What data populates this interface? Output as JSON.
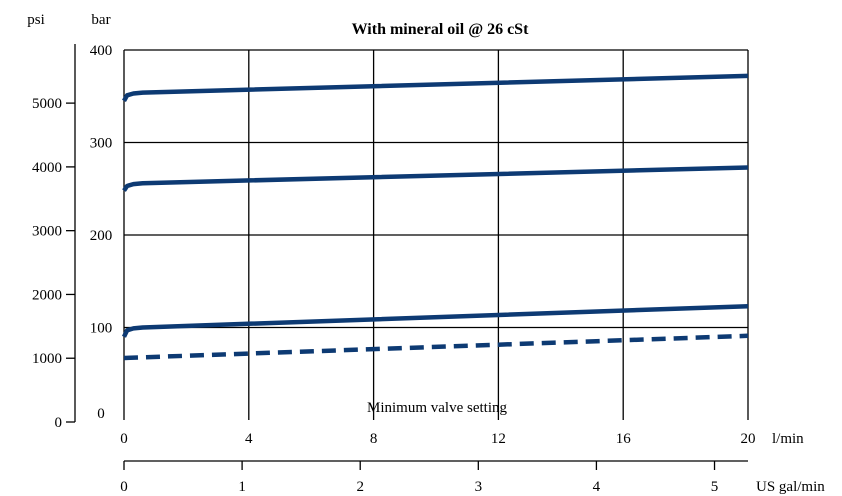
{
  "chart_data": {
    "type": "line",
    "title": "With mineral oil @ 26 cSt",
    "x": {
      "label": "l/min",
      "range": [
        0,
        20
      ],
      "ticks": [
        0,
        4,
        8,
        12,
        16,
        20
      ]
    },
    "x_secondary": {
      "label": "US gal/min",
      "ticks": [
        0,
        1,
        2,
        3,
        4,
        5
      ]
    },
    "y": {
      "label": "bar",
      "range": [
        0,
        400
      ],
      "ticks": [
        0,
        100,
        200,
        300,
        400
      ]
    },
    "y_secondary": {
      "label": "psi",
      "ticks": [
        0,
        1000,
        2000,
        3000,
        4000,
        5000
      ]
    },
    "grid": true,
    "annotation": "Minimum valve setting",
    "series": [
      {
        "style": "solid",
        "color": "#0d3a73",
        "points": [
          [
            0,
            345
          ],
          [
            0.1,
            351
          ],
          [
            0.3,
            353
          ],
          [
            0.6,
            354
          ],
          [
            20,
            372
          ]
        ]
      },
      {
        "style": "solid",
        "color": "#0d3a73",
        "points": [
          [
            0,
            248
          ],
          [
            0.1,
            253
          ],
          [
            0.3,
            255
          ],
          [
            0.6,
            256
          ],
          [
            20,
            273
          ]
        ]
      },
      {
        "style": "solid",
        "color": "#0d3a73",
        "points": [
          [
            0,
            90
          ],
          [
            0.1,
            97
          ],
          [
            0.3,
            99
          ],
          [
            0.6,
            100
          ],
          [
            20,
            123
          ]
        ]
      },
      {
        "style": "dashed",
        "color": "#0d3a73",
        "points": [
          [
            0,
            67
          ],
          [
            20,
            91
          ]
        ]
      }
    ]
  }
}
